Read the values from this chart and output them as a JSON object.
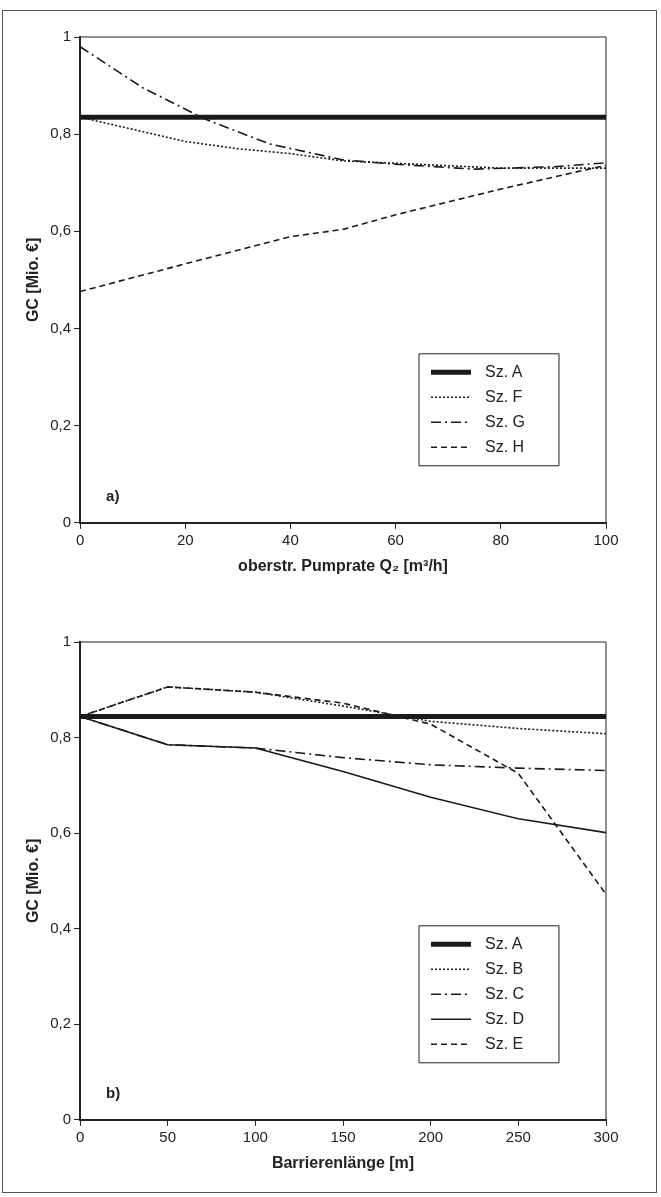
{
  "chart_data": [
    {
      "type": "line",
      "xlabel": "oberstr. Pumprate Q₂ [m³/h]",
      "ylabel": "GC [Mio. €]",
      "annotations": [
        "a)"
      ],
      "xlim": [
        0,
        100
      ],
      "xticks": [
        0,
        20,
        40,
        60,
        80,
        100
      ],
      "ylim": [
        0,
        1
      ],
      "yticks": [
        {
          "value": 0,
          "label": "0"
        },
        {
          "value": 0.2,
          "label": "0,2"
        },
        {
          "value": 0.4,
          "label": "0,4"
        },
        {
          "value": 0.6,
          "label": "0,6"
        },
        {
          "value": 0.8,
          "label": "0,8"
        },
        {
          "value": 1,
          "label": "1"
        }
      ],
      "legend": "bottom right",
      "marker": "none",
      "series": [
        {
          "name": "Sz. A",
          "color": "#1a1a1a",
          "line_style": "solid",
          "x": [
            0,
            100
          ],
          "values": [
            0.835,
            0.835
          ]
        },
        {
          "name": "Sz. F",
          "color": "#1a1a1a",
          "line_style": "dotted",
          "x": [
            0,
            10,
            20,
            30,
            40,
            50,
            60,
            70,
            80,
            90,
            100
          ],
          "values": [
            0.835,
            0.81,
            0.785,
            0.77,
            0.76,
            0.745,
            0.74,
            0.735,
            0.73,
            0.73,
            0.73
          ]
        },
        {
          "name": "Sz. G",
          "color": "#1a1a1a",
          "line_style": "dashdot",
          "x": [
            0,
            12,
            24,
            36,
            50,
            60,
            75,
            90,
            100
          ],
          "values": [
            0.98,
            0.895,
            0.83,
            0.78,
            0.747,
            0.738,
            0.728,
            0.733,
            0.741
          ]
        },
        {
          "name": "Sz. H",
          "color": "#1a1a1a",
          "line_style": "dashed",
          "x": [
            0,
            20,
            40,
            50,
            60,
            80,
            100
          ],
          "values": [
            0.476,
            0.533,
            0.589,
            0.604,
            0.634,
            0.687,
            0.736
          ]
        }
      ]
    },
    {
      "type": "line",
      "xlabel": "Barrierenlänge [m]",
      "ylabel": "GC [Mio. €]",
      "annotations": [
        "b)"
      ],
      "xlim": [
        0,
        300
      ],
      "xticks": [
        0,
        50,
        100,
        150,
        200,
        250,
        300
      ],
      "ylim": [
        0,
        1
      ],
      "yticks": [
        {
          "value": 0,
          "label": "0"
        },
        {
          "value": 0.2,
          "label": "0,2"
        },
        {
          "value": 0.4,
          "label": "0,4"
        },
        {
          "value": 0.6,
          "label": "0,6"
        },
        {
          "value": 0.8,
          "label": "0,8"
        },
        {
          "value": 1,
          "label": "1"
        }
      ],
      "legend": "bottom right",
      "marker": "none",
      "series": [
        {
          "name": "Sz. A",
          "color": "#1a1a1a",
          "line_style": "solid",
          "x": [
            0,
            300
          ],
          "values": [
            0.844,
            0.844
          ]
        },
        {
          "name": "Sz. B",
          "color": "#1a1a1a",
          "line_style": "dotted",
          "x": [
            0,
            50,
            100,
            150,
            200,
            250,
            300
          ],
          "values": [
            0.844,
            0.906,
            0.895,
            0.866,
            0.834,
            0.819,
            0.808
          ]
        },
        {
          "name": "Sz. C",
          "color": "#1a1a1a",
          "line_style": "dashdot",
          "x": [
            0,
            50,
            100,
            150,
            200,
            250,
            300
          ],
          "values": [
            0.844,
            0.785,
            0.778,
            0.758,
            0.743,
            0.736,
            0.731
          ]
        },
        {
          "name": "Sz. D",
          "color": "#1a1a1a",
          "line_style": "solid",
          "x": [
            0,
            50,
            100,
            150,
            200,
            250,
            300
          ],
          "values": [
            0.844,
            0.785,
            0.778,
            0.729,
            0.675,
            0.63,
            0.601
          ]
        },
        {
          "name": "Sz. E",
          "color": "#1a1a1a",
          "line_style": "dashed",
          "x": [
            0,
            50,
            100,
            150,
            200,
            250,
            300
          ],
          "values": [
            0.844,
            0.906,
            0.895,
            0.872,
            0.828,
            0.725,
            0.472
          ]
        }
      ]
    }
  ]
}
